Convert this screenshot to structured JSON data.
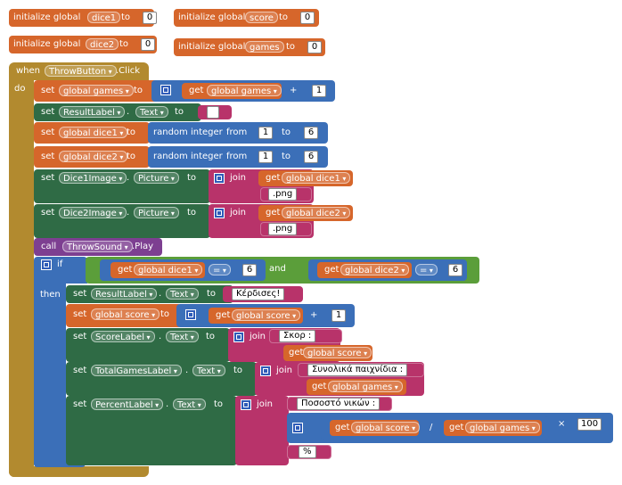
{
  "init_blocks": [
    {
      "label": "initialize global",
      "var": "dice1",
      "to": "to",
      "value": "0"
    },
    {
      "label": "initialize global",
      "var": "score",
      "to": "to",
      "value": "0"
    },
    {
      "label": "initialize global",
      "var": "dice2",
      "to": "to",
      "value": "0"
    },
    {
      "label": "initialize global",
      "var": "games",
      "to": "to",
      "value": "0"
    }
  ],
  "event": {
    "when": "when",
    "component": "ThrowButton",
    "event": ".Click",
    "do": "do"
  },
  "kw": {
    "set": "set",
    "to": "to",
    "get": "get",
    "join": "join",
    "call": "call",
    "if": "if",
    "then": "then",
    "dot": ".",
    "plus": "+",
    "div": "/",
    "times": "×",
    "and": "and",
    "eq": "=",
    "random": "random integer",
    "from": "from",
    "to_kw": "to",
    "text": "Text",
    "picture": "Picture"
  },
  "s1": {
    "var": "global games",
    "get_var": "global games",
    "num": "1"
  },
  "s2": {
    "comp": "ResultLabel",
    "prop": "Text",
    "str": " "
  },
  "s3": {
    "var": "global dice1",
    "from": "1",
    "to": "6"
  },
  "s4": {
    "var": "global dice2",
    "from": "1",
    "to": "6"
  },
  "s5": {
    "comp": "Dice1Image",
    "prop": "Picture",
    "get_var": "global dice1",
    "str": ".png"
  },
  "s6": {
    "comp": "Dice2Image",
    "prop": "Picture",
    "get_var": "global dice2",
    "str": ".png"
  },
  "s7": {
    "comp": "ThrowSound",
    "method": ".Play"
  },
  "cond": {
    "var1": "global dice1",
    "num1": "6",
    "var2": "global dice2",
    "num2": "6"
  },
  "t1": {
    "comp": "ResultLabel",
    "prop": "Text",
    "str": "Κέρδισες!"
  },
  "t2": {
    "var": "global score",
    "get_var": "global score",
    "num": "1"
  },
  "t3": {
    "comp": "ScoreLabel",
    "prop": "Text",
    "str": "Σκορ : ",
    "get_var": "global score"
  },
  "t4": {
    "comp": "TotalGamesLabel",
    "prop": "Text",
    "str": "Συνολικά παιχνίδια : ",
    "get_var": "global games"
  },
  "t5": {
    "comp": "PercentLabel",
    "prop": "Text",
    "str": "Ποσοστό νικών : ",
    "get1": "global score",
    "get2": "global games",
    "num": "100",
    "pct": "%"
  },
  "colors": {
    "orange": "#d6662b",
    "green": "#2f6b45",
    "blue": "#3b6fb8",
    "pink": "#b8336a",
    "purple": "#7d3f91",
    "lgreen": "#5b9e3a",
    "gold": "#b28a2f"
  }
}
